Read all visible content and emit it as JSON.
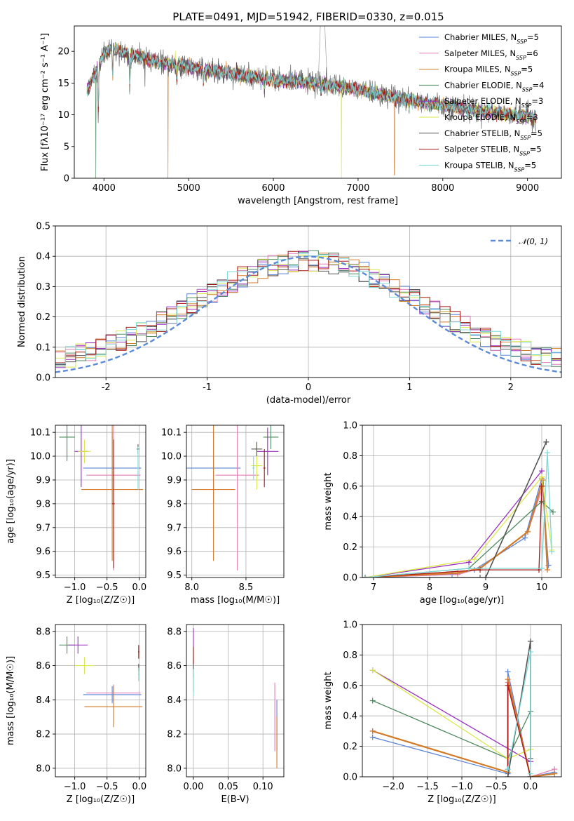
{
  "figure_title": "PLATE=0491, MJD=51942, FIBERID=0330, z=0.015",
  "series": [
    {
      "name": "Chabrier MILES",
      "nssp": "5",
      "color": "#5b84d9"
    },
    {
      "name": "Salpeter MILES",
      "nssp": "6",
      "color": "#e27fb8"
    },
    {
      "name": "Kroupa MILES",
      "nssp": "5",
      "color": "#d47a26"
    },
    {
      "name": "Chabrier ELODIE",
      "nssp": "4",
      "color": "#4e8a5e"
    },
    {
      "name": "Salpeter ELODIE",
      "nssp": "3",
      "color": "#9a2fbf"
    },
    {
      "name": "Kroupa ELODIE",
      "nssp": "3",
      "color": "#d9e84a"
    },
    {
      "name": "Chabrier STELIB",
      "nssp": "5",
      "color": "#555555"
    },
    {
      "name": "Salpeter STELIB",
      "nssp": "5",
      "color": "#a81414"
    },
    {
      "name": "Kroupa STELIB",
      "nssp": "5",
      "color": "#7fd8d8"
    }
  ],
  "chart_data": [
    {
      "id": "spectrum",
      "type": "line",
      "xlabel": "wavelength [Angstrom, rest frame]",
      "ylabel": "Flux [fλ10⁻¹⁷ erg cm⁻² s⁻¹ A⁻¹]",
      "xlim": [
        3650,
        9400
      ],
      "ylim": [
        0,
        24
      ],
      "xticks": [
        4000,
        5000,
        6000,
        7000,
        8000,
        9000
      ],
      "yticks": [
        0,
        5,
        10,
        15,
        20
      ],
      "legend": "top-right",
      "continuum_anchors": {
        "x": [
          3800,
          3900,
          4000,
          4100,
          4300,
          4600,
          5000,
          5500,
          6000,
          6500,
          7000,
          7500,
          8000,
          8500,
          9000,
          9100
        ],
        "y": [
          14,
          16.5,
          19.5,
          20.5,
          19.5,
          18.5,
          17.5,
          16.5,
          15.5,
          15,
          14,
          12.5,
          11.5,
          10.5,
          9.8,
          9.5
        ]
      },
      "absorption_features": [
        {
          "x": 3933,
          "y": 9
        },
        {
          "x": 4102,
          "y": 15
        },
        {
          "x": 4305,
          "y": 13
        },
        {
          "x": 4861,
          "y": 15
        },
        {
          "x": 5175,
          "y": 14.5
        },
        {
          "x": 5893,
          "y": 14
        },
        {
          "x": 6563,
          "y": 13.5
        },
        {
          "x": 7600,
          "y": 11
        }
      ],
      "dropouts": [
        {
          "x": 3905,
          "y": 0,
          "series": "Chabrier ELODIE"
        },
        {
          "x": 4755,
          "y": 0,
          "series": "Kroupa MILES"
        },
        {
          "x": 6805,
          "y": 0,
          "series": "Kroupa ELODIE"
        },
        {
          "x": 7430,
          "y": 0.5,
          "series": "Kroupa MILES"
        }
      ]
    },
    {
      "id": "residuals",
      "type": "line",
      "xlabel": "(data-model)/error",
      "ylabel": "Normed distribution",
      "xlim": [
        -2.5,
        2.5
      ],
      "ylim": [
        0,
        0.5
      ],
      "xticks": [
        -2,
        -1,
        0,
        1,
        2
      ],
      "yticks": [
        0.0,
        0.1,
        0.2,
        0.3,
        0.4,
        0.5
      ],
      "reference_label": "𝒩(0, 1)",
      "legend": "top-right",
      "bin_width": 0.1
    },
    {
      "id": "age-vs-Z",
      "type": "scatter",
      "xlabel": "Z [log₁₀(Z/Z☉)]",
      "ylabel": "age  [log₁₀(age/yr)]",
      "xlim": [
        -1.3,
        0.1
      ],
      "ylim": [
        9.49,
        10.13
      ],
      "xticks": [
        -1.0,
        -0.5,
        0.0
      ],
      "yticks": [
        9.5,
        9.6,
        9.7,
        9.8,
        9.9,
        10.0,
        10.1
      ],
      "points": [
        {
          "series": "Chabrier MILES",
          "x": -0.42,
          "xerr": 0.45,
          "y": 9.95,
          "yerr": 0.15
        },
        {
          "series": "Salpeter MILES",
          "x": -0.4,
          "xerr": 0.42,
          "y": 9.92,
          "yerr": 0.4
        },
        {
          "series": "Kroupa MILES",
          "x": -0.42,
          "xerr": 0.48,
          "y": 9.86,
          "yerr": 0.3
        },
        {
          "series": "Chabrier ELODIE",
          "x": -1.12,
          "xerr": 0.12,
          "y": 10.08,
          "yerr": 0.1
        },
        {
          "series": "Salpeter ELODIE",
          "x": -0.9,
          "xerr": 0.1,
          "y": 10.02,
          "yerr": 0.15
        },
        {
          "series": "Kroupa ELODIE",
          "x": -0.85,
          "xerr": 0.1,
          "y": 10.02,
          "yerr": 0.05
        },
        {
          "series": "Chabrier STELIB",
          "x": -0.02,
          "xerr": 0.02,
          "y": 10.03,
          "yerr": 0.02
        },
        {
          "series": "Salpeter STELIB",
          "x": -0.4,
          "xerr": 0.02,
          "y": 9.8,
          "yerr": 0.27
        },
        {
          "series": "Kroupa STELIB",
          "x": -0.02,
          "xerr": 0.01,
          "y": 9.95,
          "yerr": 0.09
        }
      ]
    },
    {
      "id": "age-vs-mass",
      "type": "scatter",
      "xlabel": "mass [log₁₀(M/M☉)]",
      "ylabel": "",
      "xlim": [
        7.95,
        8.85
      ],
      "ylim": [
        9.49,
        10.13
      ],
      "xticks": [
        8.0,
        8.5
      ],
      "yticks": [
        9.5,
        9.6,
        9.7,
        9.8,
        9.9,
        10.0,
        10.1
      ],
      "points": [
        {
          "series": "Chabrier MILES",
          "x": 8.2,
          "xerr": 0.25,
          "y": 9.95,
          "yerr": 0.15
        },
        {
          "series": "Salpeter MILES",
          "x": 8.42,
          "xerr": 0.2,
          "y": 9.92,
          "yerr": 0.4
        },
        {
          "series": "Kroupa MILES",
          "x": 8.2,
          "xerr": 0.2,
          "y": 9.86,
          "yerr": 0.3
        },
        {
          "series": "Chabrier ELODIE",
          "x": 8.73,
          "xerr": 0.07,
          "y": 10.08,
          "yerr": 0.05
        },
        {
          "series": "Salpeter ELODIE",
          "x": 8.7,
          "xerr": 0.1,
          "y": 10.02,
          "yerr": 0.1
        },
        {
          "series": "Kroupa ELODIE",
          "x": 8.6,
          "xerr": 0.05,
          "y": 9.96,
          "yerr": 0.1
        },
        {
          "series": "Chabrier STELIB",
          "x": 8.6,
          "xerr": 0.05,
          "y": 10.03,
          "yerr": 0.03
        },
        {
          "series": "Salpeter STELIB",
          "x": 8.67,
          "xerr": 0.01,
          "y": 9.95,
          "yerr": 0.08
        },
        {
          "series": "Kroupa STELIB",
          "x": 8.57,
          "xerr": 0.01,
          "y": 9.95,
          "yerr": 0.05
        }
      ]
    },
    {
      "id": "weight-vs-age",
      "type": "line",
      "xlabel": "age  [log₁₀(age/yr)]",
      "ylabel": "mass weight",
      "xlim": [
        6.8,
        10.35
      ],
      "ylim": [
        0,
        1
      ],
      "xticks": [
        7,
        8,
        9,
        10
      ],
      "yticks": [
        0.0,
        0.2,
        0.4,
        0.6,
        0.8,
        1.0
      ],
      "lines": [
        {
          "series": "Chabrier MILES",
          "x": [
            6.85,
            8.4,
            8.8,
            9.7,
            10.0,
            10.12
          ],
          "y": [
            0.0,
            0.02,
            0.05,
            0.26,
            0.65,
            0.08
          ]
        },
        {
          "series": "Salpeter MILES",
          "x": [
            6.85,
            8.5,
            8.9,
            9.75,
            10.02
          ],
          "y": [
            0.0,
            0.02,
            0.06,
            0.3,
            0.6
          ]
        },
        {
          "series": "Kroupa MILES",
          "x": [
            6.85,
            8.5,
            8.9,
            9.75,
            10.02,
            10.1
          ],
          "y": [
            0.0,
            0.03,
            0.06,
            0.3,
            0.64,
            0.05
          ]
        },
        {
          "series": "Chabrier ELODIE",
          "x": [
            6.85,
            8.7,
            10.0,
            10.2
          ],
          "y": [
            0.0,
            0.06,
            0.5,
            0.43
          ]
        },
        {
          "series": "Salpeter ELODIE",
          "x": [
            6.85,
            8.7,
            10.0
          ],
          "y": [
            0.0,
            0.1,
            0.7
          ]
        },
        {
          "series": "Kroupa ELODIE",
          "x": [
            6.85,
            8.8,
            10.0,
            10.18
          ],
          "y": [
            0.0,
            0.12,
            0.66,
            0.18
          ]
        },
        {
          "series": "Chabrier STELIB",
          "x": [
            6.85,
            8.9,
            9.0,
            10.08
          ],
          "y": [
            0.0,
            0.0,
            0.0,
            0.89
          ]
        },
        {
          "series": "Salpeter STELIB",
          "x": [
            6.85,
            8.9,
            9.95,
            10.0
          ],
          "y": [
            0.0,
            0.05,
            0.05,
            0.6
          ]
        },
        {
          "series": "Kroupa STELIB",
          "x": [
            6.85,
            8.7,
            10.0,
            10.1,
            10.18
          ],
          "y": [
            0.0,
            0.06,
            0.06,
            0.82,
            0.17
          ]
        }
      ]
    },
    {
      "id": "mass-vs-Z",
      "type": "scatter",
      "xlabel": "Z [log₁₀(Z/Z☉)]",
      "ylabel": "mass [log₁₀(M/M☉)]",
      "xlim": [
        -1.3,
        0.1
      ],
      "ylim": [
        7.95,
        8.84
      ],
      "xticks": [
        -1.0,
        -0.5,
        0.0
      ],
      "yticks": [
        8.0,
        8.2,
        8.4,
        8.6,
        8.8
      ],
      "points": [
        {
          "series": "Chabrier MILES",
          "x": -0.42,
          "xerr": 0.45,
          "y": 8.43,
          "yerr": 0.05
        },
        {
          "series": "Salpeter MILES",
          "x": -0.4,
          "xerr": 0.42,
          "y": 8.44,
          "yerr": 0.05
        },
        {
          "series": "Kroupa MILES",
          "x": -0.4,
          "xerr": 0.45,
          "y": 8.36,
          "yerr": 0.12
        },
        {
          "series": "Chabrier ELODIE",
          "x": -1.12,
          "xerr": 0.12,
          "y": 8.72,
          "yerr": 0.05
        },
        {
          "series": "Salpeter ELODIE",
          "x": -0.95,
          "xerr": 0.15,
          "y": 8.72,
          "yerr": 0.05
        },
        {
          "series": "Kroupa ELODIE",
          "x": -0.85,
          "xerr": 0.15,
          "y": 8.6,
          "yerr": 0.05
        },
        {
          "series": "Chabrier STELIB",
          "x": -0.01,
          "xerr": 0.01,
          "y": 8.59,
          "yerr": 0.02
        },
        {
          "series": "Salpeter STELIB",
          "x": -0.01,
          "xerr": 0.01,
          "y": 8.68,
          "yerr": 0.04
        },
        {
          "series": "Kroupa STELIB",
          "x": -0.01,
          "xerr": 0.01,
          "y": 8.55,
          "yerr": 0.04
        }
      ]
    },
    {
      "id": "mass-vs-EBV",
      "type": "scatter",
      "xlabel": "E(B-V)",
      "ylabel": "",
      "xlim": [
        -0.01,
        0.13
      ],
      "ylim": [
        7.95,
        8.84
      ],
      "xticks": [
        0.0,
        0.05,
        0.1
      ],
      "yticks": [
        8.0,
        8.2,
        8.4,
        8.6,
        8.8
      ],
      "points": [
        {
          "series": "Chabrier MILES",
          "x": 0.12,
          "xerr": 0.0,
          "y": 8.25,
          "yerr": 0.15
        },
        {
          "series": "Salpeter MILES",
          "x": 0.117,
          "xerr": 0.0,
          "y": 8.3,
          "yerr": 0.2
        },
        {
          "series": "Kroupa MILES",
          "x": 0.12,
          "xerr": 0.0,
          "y": 8.15,
          "yerr": 0.15
        },
        {
          "series": "Chabrier ELODIE",
          "x": 0.0,
          "xerr": 0.0,
          "y": 8.55,
          "yerr": 0.1
        },
        {
          "series": "Salpeter ELODIE",
          "x": 0.0,
          "xerr": 0.0,
          "y": 8.72,
          "yerr": 0.1
        },
        {
          "series": "Kroupa ELODIE",
          "x": 0.0,
          "xerr": 0.0,
          "y": 8.6,
          "yerr": 0.1
        },
        {
          "series": "Chabrier STELIB",
          "x": 0.0,
          "xerr": 0.0,
          "y": 8.58,
          "yerr": 0.05
        },
        {
          "series": "Salpeter STELIB",
          "x": 0.0,
          "xerr": 0.0,
          "y": 8.66,
          "yerr": 0.05
        },
        {
          "series": "Kroupa STELIB",
          "x": 0.0,
          "xerr": 0.0,
          "y": 8.5,
          "yerr": 0.08
        }
      ]
    },
    {
      "id": "weight-vs-Z",
      "type": "line",
      "xlabel": "Z [log₁₀(Z/Z☉)]",
      "ylabel": "mass weight",
      "xlim": [
        -2.45,
        0.45
      ],
      "ylim": [
        0,
        1
      ],
      "xticks": [
        -2.0,
        -1.5,
        -1.0,
        -0.5,
        0.0
      ],
      "yticks": [
        0.0,
        0.2,
        0.4,
        0.6,
        0.8,
        1.0
      ],
      "lines": [
        {
          "series": "Chabrier MILES",
          "x": [
            -2.3,
            -0.33,
            -0.33,
            0.0,
            0.35
          ],
          "y": [
            0.26,
            0.02,
            0.69,
            0.0,
            0.03
          ]
        },
        {
          "series": "Salpeter MILES",
          "x": [
            -2.3,
            -0.33,
            -0.33,
            0.0,
            0.35
          ],
          "y": [
            0.3,
            0.03,
            0.62,
            0.0,
            0.05
          ]
        },
        {
          "series": "Kroupa MILES",
          "x": [
            -2.3,
            -0.33,
            -0.33,
            0.0,
            0.35
          ],
          "y": [
            0.3,
            0.03,
            0.64,
            0.0,
            0.02
          ]
        },
        {
          "series": "Chabrier ELODIE",
          "x": [
            -2.3,
            -0.33,
            0.0
          ],
          "y": [
            0.5,
            0.12,
            0.43
          ]
        },
        {
          "series": "Salpeter ELODIE",
          "x": [
            -2.3,
            0.0
          ],
          "y": [
            0.7,
            0.1
          ]
        },
        {
          "series": "Kroupa ELODIE",
          "x": [
            -2.3,
            -0.33,
            0.0
          ],
          "y": [
            0.7,
            0.12,
            0.18
          ]
        },
        {
          "series": "Chabrier STELIB",
          "x": [
            -0.33,
            0.0,
            0.0
          ],
          "y": [
            0.0,
            0.89,
            0.12
          ]
        },
        {
          "series": "Salpeter STELIB",
          "x": [
            -0.33,
            -0.33,
            0.0
          ],
          "y": [
            0.05,
            0.6,
            0.0
          ]
        },
        {
          "series": "Kroupa STELIB",
          "x": [
            -0.33,
            0.0,
            0.0
          ],
          "y": [
            0.05,
            0.82,
            0.02
          ]
        }
      ]
    }
  ]
}
